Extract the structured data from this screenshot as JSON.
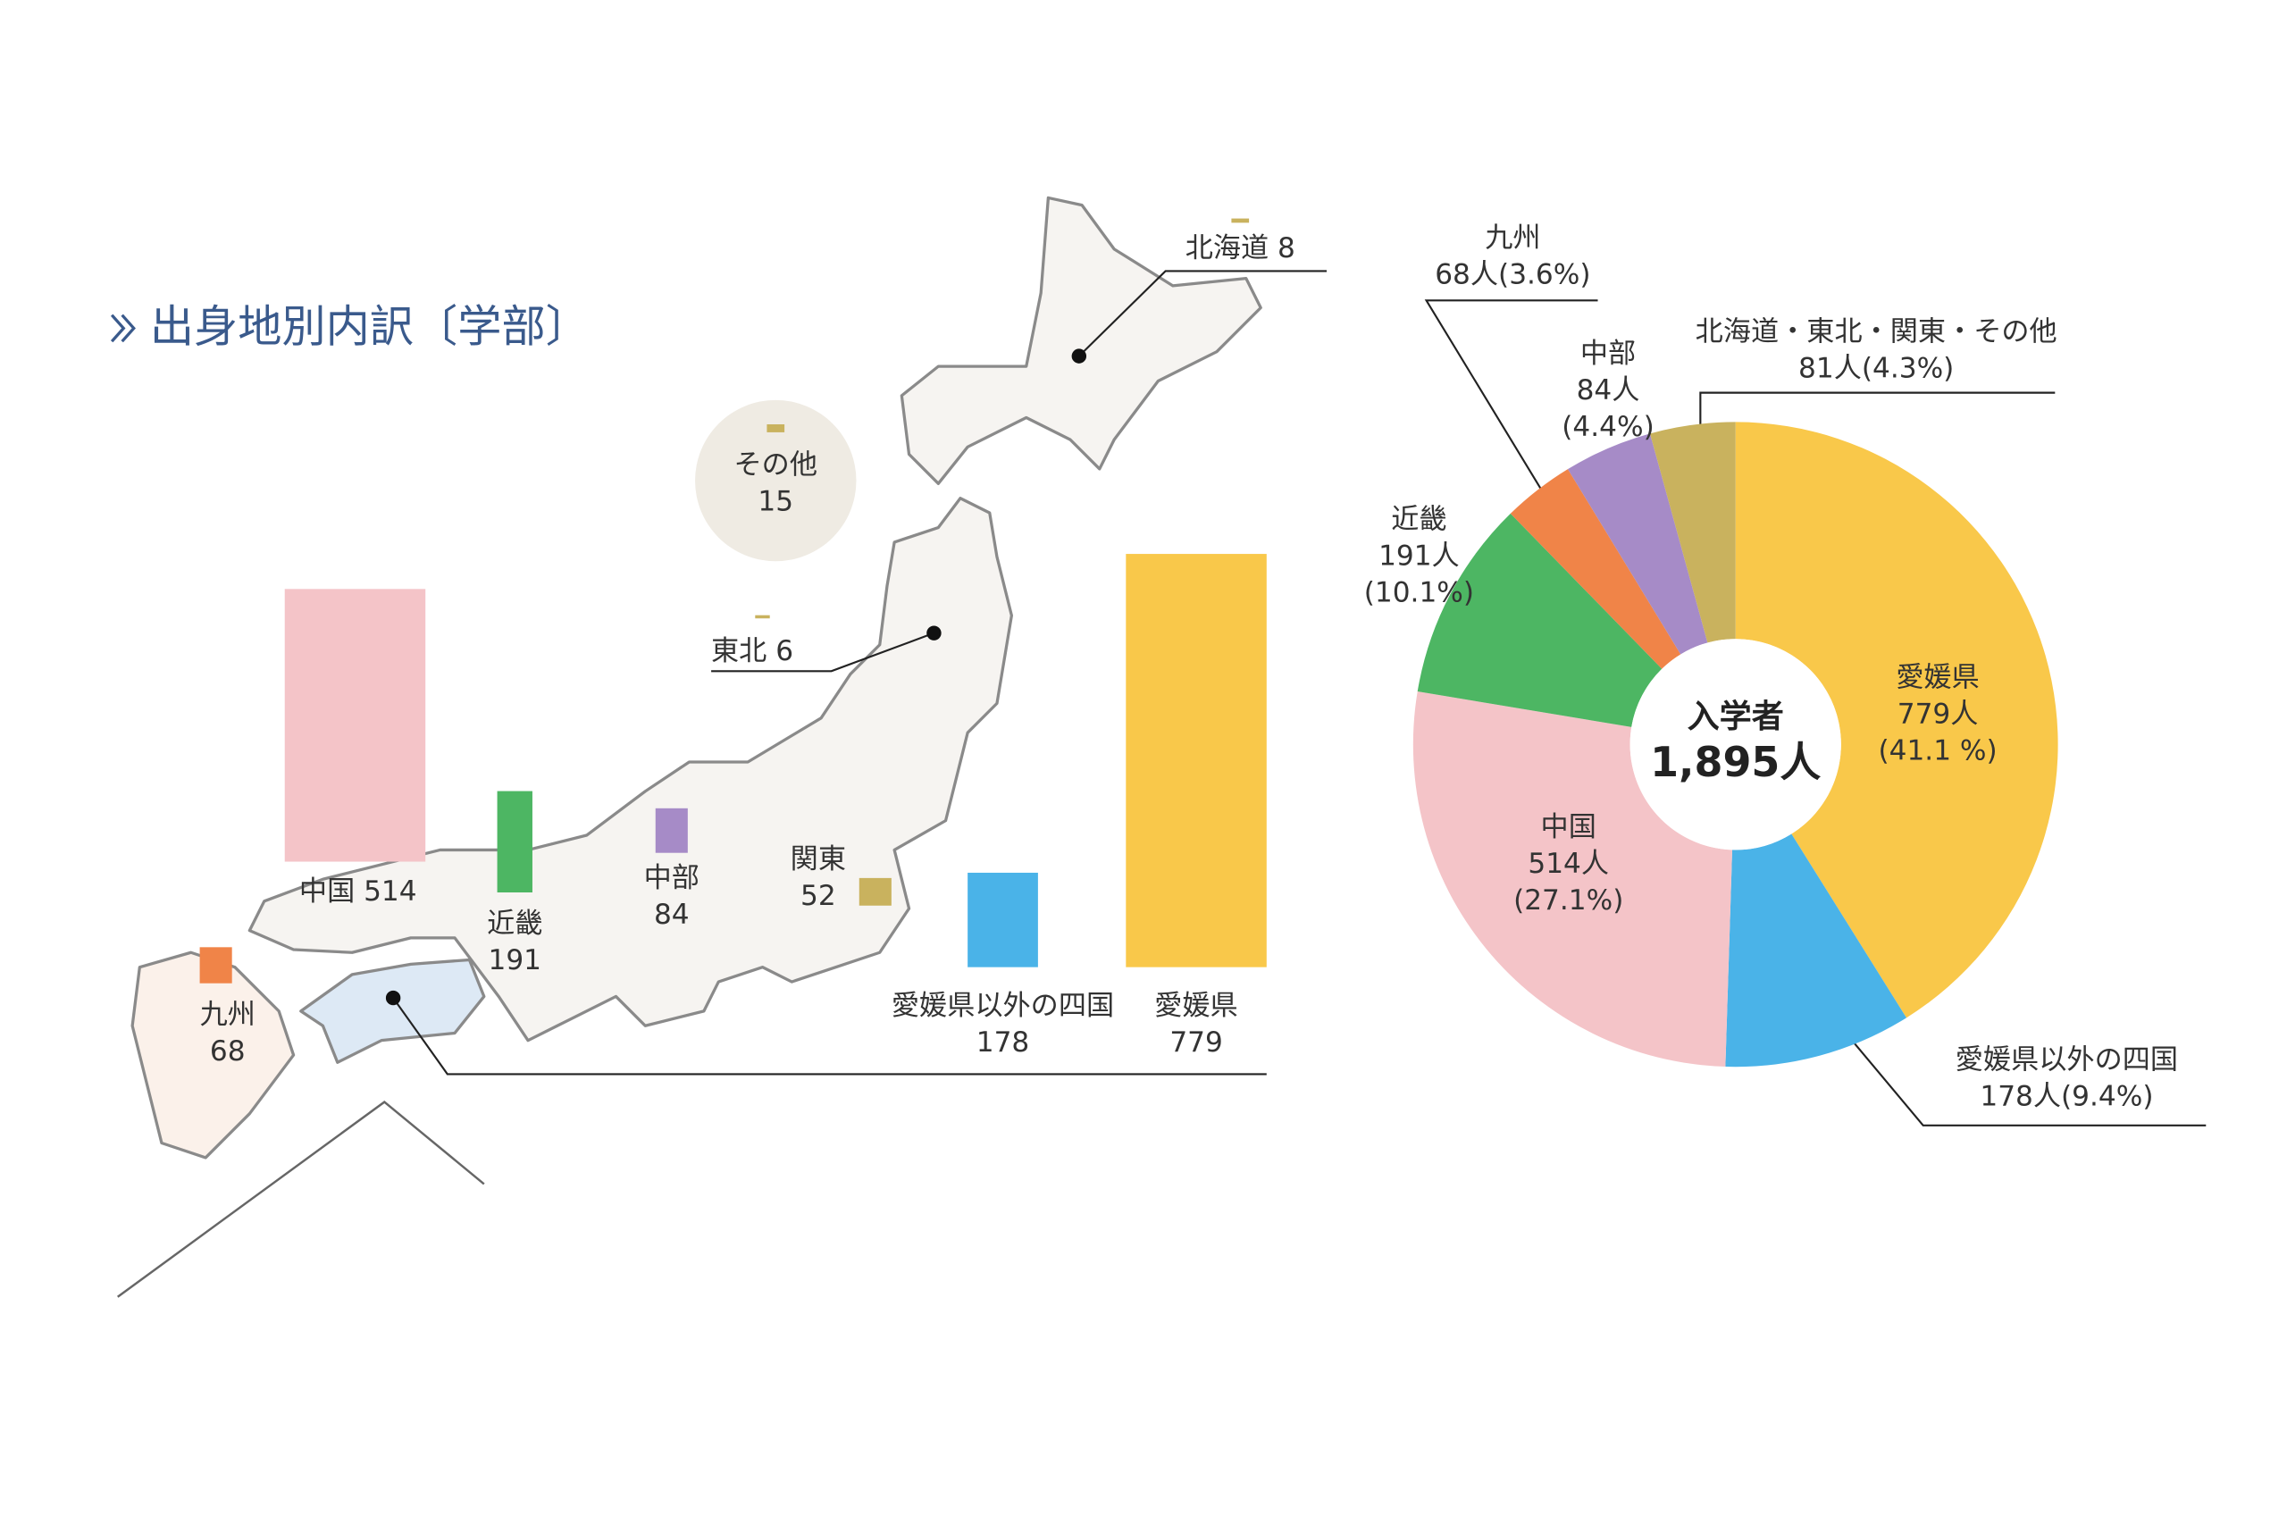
{
  "title": "出身地別内訳〔学部〕",
  "chart_data": [
    {
      "type": "bar",
      "categories": [
        "北海道",
        "その他",
        "東北",
        "中部",
        "関東",
        "中国",
        "近畿",
        "九州",
        "愛媛県以外の四国",
        "愛媛県"
      ],
      "values": [
        8,
        15,
        6,
        84,
        52,
        514,
        191,
        68,
        178,
        779
      ],
      "colors": [
        "#c9b25e",
        "#c9b25e",
        "#c9b25e",
        "#a68bc7",
        "#c9b25e",
        "#f4c4c8",
        "#4db663",
        "#f08448",
        "#4ab3e8",
        "#f9c84a"
      ]
    },
    {
      "type": "donut",
      "center_title": "入学者",
      "total": 1895,
      "total_label": "1,895人",
      "categories": [
        "愛媛県",
        "愛媛県以外の四国",
        "中国",
        "近畿",
        "九州",
        "中部",
        "北海道・東北・関東・その他"
      ],
      "values": [
        779,
        178,
        514,
        191,
        68,
        84,
        81
      ],
      "value_labels": [
        "779人",
        "178人",
        "514人",
        "191人",
        "68人",
        "84人",
        "81人"
      ],
      "percent_labels": [
        "(41.1 %)",
        "(9.4%)",
        "(27.1%)",
        "(10.1%)",
        "(3.6%)",
        "(4.4%)",
        "(4.3%)"
      ],
      "colors": [
        "#f9c84a",
        "#4ab3e8",
        "#f4c4c8",
        "#4db663",
        "#f08448",
        "#a68bc7",
        "#c9b25e"
      ]
    }
  ]
}
